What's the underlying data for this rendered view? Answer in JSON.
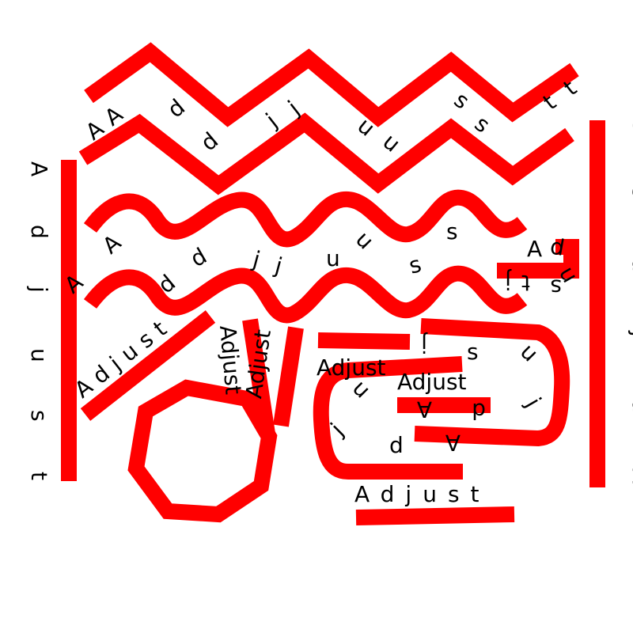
{
  "colors": {
    "stroke": "#ff0000",
    "text": "#000000",
    "background": "#ffffff"
  },
  "word": "Adjust",
  "letters": {
    "a": "A",
    "d": "d",
    "j": "j",
    "u": "u",
    "s": "s",
    "t": "t"
  }
}
